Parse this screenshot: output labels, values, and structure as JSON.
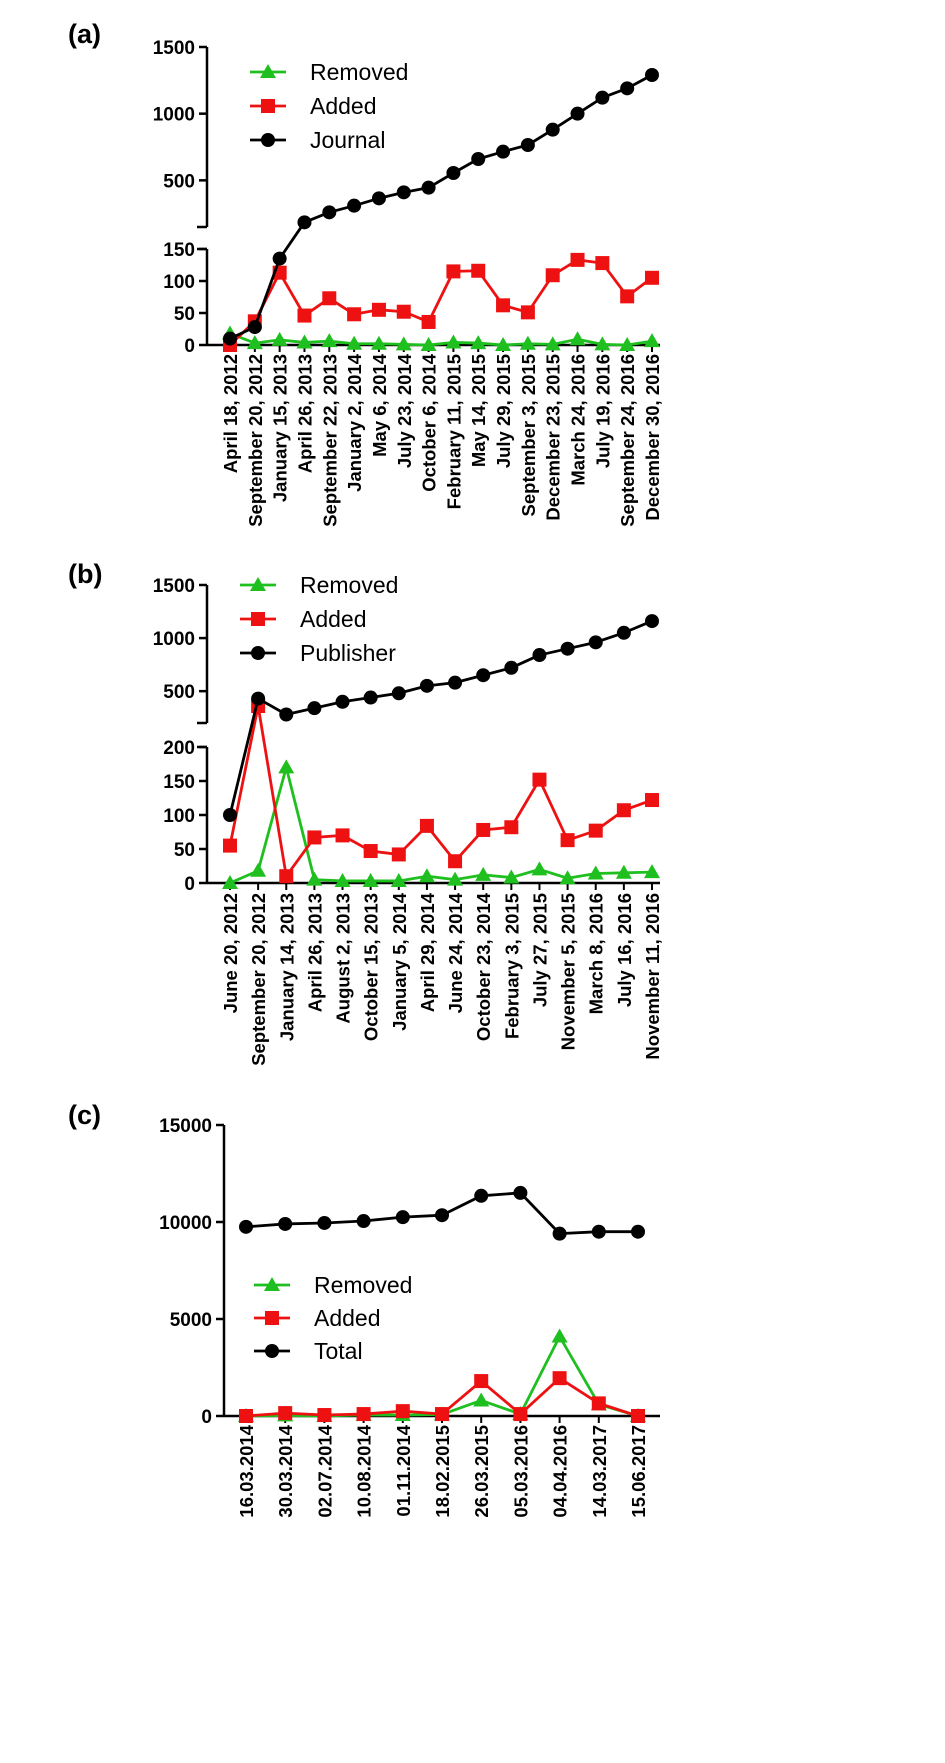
{
  "colors": {
    "removed": "#1fbf1f",
    "added": "#ee1111",
    "total": "#000000"
  },
  "chart_data": [
    {
      "panel_label": "(a)",
      "type": "line",
      "y_axis_break": true,
      "lower_ylim": [
        0,
        150
      ],
      "upper_ylim": [
        150,
        1500
      ],
      "lower_yticks": [
        "0",
        "50",
        "100",
        "150"
      ],
      "upper_yticks": [
        "500",
        "1000",
        "1500"
      ],
      "legend_position": "top-left",
      "categories": [
        "April 18, 2012",
        "September 20, 2012",
        "January 15, 2013",
        "April 26, 2013",
        "September 22, 2013",
        "January 2, 2014",
        "May 6, 2014",
        "July 23, 2014",
        "October 6, 2014",
        "February 11, 2015",
        "May 14, 2015",
        "July 29, 2015",
        "September 3, 2015",
        "December 23, 2015",
        "March 24, 2016",
        "July 19, 2016",
        "September 24, 2016",
        "December 30, 2016"
      ],
      "series": [
        {
          "name": "Removed",
          "marker": "triangle",
          "color_key": "removed",
          "values": [
            18,
            3,
            8,
            4,
            6,
            2,
            2,
            1,
            0,
            4,
            3,
            0,
            2,
            1,
            9,
            1,
            0,
            6
          ]
        },
        {
          "name": "Added",
          "marker": "square",
          "color_key": "added",
          "values": [
            0,
            37,
            113,
            46,
            73,
            48,
            55,
            52,
            36,
            115,
            116,
            62,
            51,
            109,
            133,
            128,
            76,
            105
          ]
        },
        {
          "name": "Journal",
          "marker": "circle",
          "color_key": "total",
          "values": [
            10,
            28,
            135,
            185,
            260,
            310,
            365,
            410,
            445,
            555,
            660,
            715,
            765,
            880,
            1000,
            1120,
            1190,
            1290
          ]
        }
      ]
    },
    {
      "panel_label": "(b)",
      "type": "line",
      "y_axis_break": true,
      "lower_ylim": [
        0,
        200
      ],
      "upper_ylim": [
        200,
        1500
      ],
      "lower_yticks": [
        "0",
        "50",
        "100",
        "150",
        "200"
      ],
      "upper_yticks": [
        "500",
        "1000",
        "1500"
      ],
      "legend_position": "top-left",
      "categories": [
        "June 20, 2012",
        "September 20, 2012",
        "January 14, 2013",
        "April 26, 2013",
        "August 2, 2013",
        "October 15, 2013",
        "January 5, 2014",
        "April 29, 2014",
        "June 24, 2014",
        "October 23, 2014",
        "February 3, 2015",
        "July 27, 2015",
        "November 5, 2015",
        "March 8, 2016",
        "July 16, 2016",
        "November 11, 2016"
      ],
      "series": [
        {
          "name": "Removed",
          "marker": "triangle",
          "color_key": "removed",
          "values": [
            0,
            18,
            170,
            5,
            3,
            3,
            3,
            10,
            5,
            12,
            8,
            20,
            7,
            14,
            15,
            16
          ]
        },
        {
          "name": "Added",
          "marker": "square",
          "color_key": "added",
          "values": [
            55,
            360,
            10,
            67,
            70,
            47,
            42,
            84,
            32,
            78,
            82,
            152,
            63,
            77,
            107,
            122
          ]
        },
        {
          "name": "Publisher",
          "marker": "circle",
          "color_key": "total",
          "values": [
            100,
            430,
            280,
            340,
            400,
            440,
            480,
            550,
            580,
            650,
            720,
            840,
            900,
            960,
            1050,
            1160
          ]
        }
      ]
    },
    {
      "panel_label": "(c)",
      "type": "line",
      "y_axis_break": false,
      "ylim": [
        0,
        15000
      ],
      "yticks": [
        "0",
        "5000",
        "10000",
        "15000"
      ],
      "legend_position": "lower-left",
      "categories": [
        "16.03.2014",
        "30.03.2014",
        "02.07.2014",
        "10.08.2014",
        "01.11.2014",
        "18.02.2015",
        "26.03.2015",
        "05.03.2016",
        "04.04.2016",
        "14.03.2017",
        "15.06.2017"
      ],
      "series": [
        {
          "name": "Removed",
          "marker": "triangle",
          "color_key": "removed",
          "values": [
            0,
            30,
            0,
            60,
            50,
            80,
            800,
            100,
            4100,
            600,
            0
          ]
        },
        {
          "name": "Added",
          "marker": "square",
          "color_key": "added",
          "values": [
            0,
            150,
            50,
            100,
            250,
            100,
            1800,
            100,
            1950,
            650,
            0
          ]
        },
        {
          "name": "Total",
          "marker": "circle",
          "color_key": "total",
          "values": [
            9750,
            9900,
            9950,
            10050,
            10250,
            10350,
            11350,
            11500,
            9400,
            9500,
            9500
          ]
        }
      ]
    }
  ]
}
